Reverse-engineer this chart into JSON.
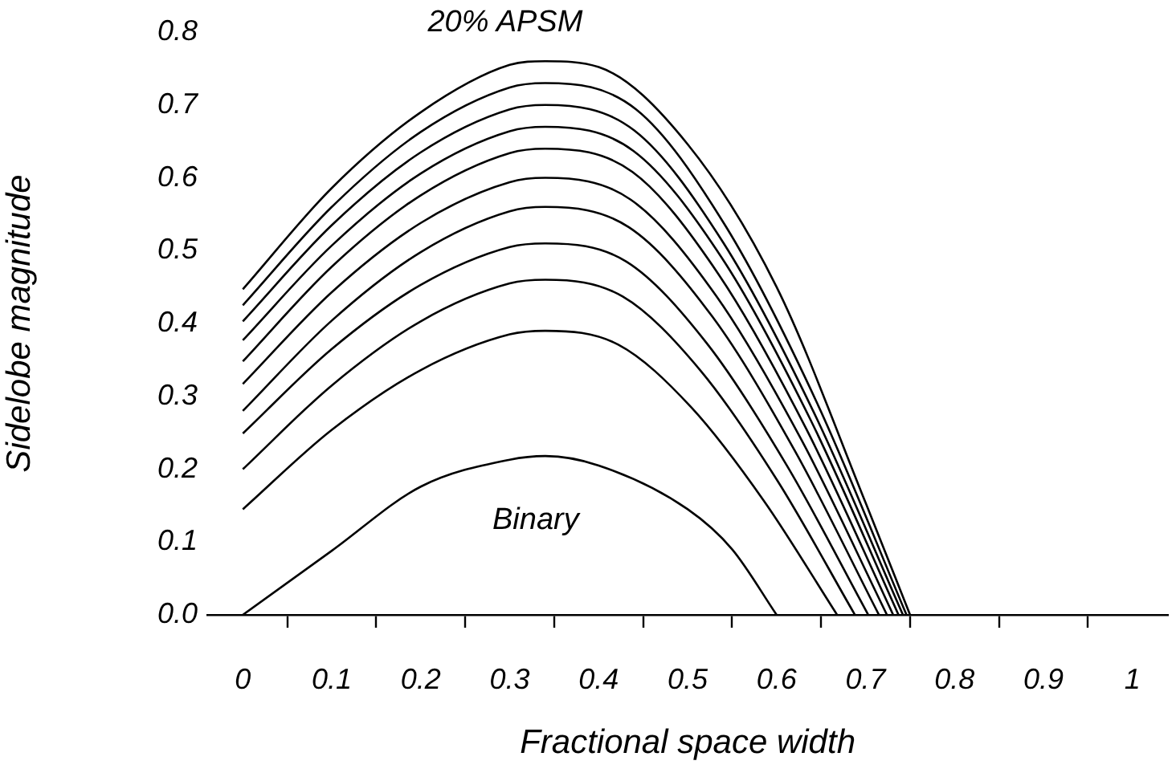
{
  "chart_data": {
    "type": "line",
    "xlabel": "Fractional space width",
    "ylabel": "Sidelobe magnitude",
    "xlim": [
      -0.04,
      1.04
    ],
    "ylim": [
      0,
      0.8
    ],
    "xticks": [
      0,
      {
        "value": 0.05,
        "label": null
      },
      0.1,
      {
        "value": 0.15,
        "label": null
      },
      0.2,
      {
        "value": 0.25,
        "label": null
      },
      0.3,
      {
        "value": 0.35,
        "label": null
      },
      0.4,
      {
        "value": 0.45,
        "label": null
      },
      0.5,
      {
        "value": 0.55,
        "label": null
      },
      0.6,
      {
        "value": 0.65,
        "label": null
      },
      0.7,
      {
        "value": 0.75,
        "label": null
      },
      0.8,
      {
        "value": 0.85,
        "label": null
      },
      0.9,
      {
        "value": 0.95,
        "label": null
      },
      1
    ],
    "yticks": [
      {
        "value": 0,
        "label": "0.0"
      },
      0.1,
      0.2,
      0.3,
      0.4,
      0.5,
      0.6,
      0.7,
      0.8
    ],
    "legend": false,
    "series": [
      {
        "color": "#000000",
        "x": [
          0,
          0.1,
          0.2,
          0.3,
          0.34,
          0.4,
          0.5,
          0.55,
          0.6
        ],
        "values": [
          0,
          0.088,
          0.176,
          0.213,
          0.218,
          0.205,
          0.145,
          0.09,
          0
        ]
      },
      {
        "color": "#000000",
        "x": [
          0,
          0.1,
          0.2,
          0.3,
          0.34,
          0.422,
          0.504,
          0.586,
          0.668
        ],
        "values": [
          0.145,
          0.254,
          0.336,
          0.385,
          0.39,
          0.371,
          0.285,
          0.156,
          0
        ]
      },
      {
        "color": "#000000",
        "x": [
          0,
          0.1,
          0.2,
          0.3,
          0.34,
          0.427,
          0.514,
          0.601,
          0.688
        ],
        "values": [
          0.2,
          0.315,
          0.403,
          0.455,
          0.46,
          0.437,
          0.336,
          0.184,
          0
        ]
      },
      {
        "color": "#000000",
        "x": [
          0,
          0.1,
          0.2,
          0.3,
          0.34,
          0.431,
          0.522,
          0.612,
          0.703
        ],
        "values": [
          0.249,
          0.365,
          0.453,
          0.505,
          0.51,
          0.485,
          0.372,
          0.204,
          0
        ]
      },
      {
        "color": "#000000",
        "x": [
          0,
          0.1,
          0.2,
          0.3,
          0.34,
          0.434,
          0.528,
          0.621,
          0.715
        ],
        "values": [
          0.28,
          0.404,
          0.498,
          0.554,
          0.56,
          0.532,
          0.409,
          0.224,
          0
        ]
      },
      {
        "color": "#000000",
        "x": [
          0,
          0.1,
          0.2,
          0.3,
          0.34,
          0.436,
          0.532,
          0.628,
          0.724
        ],
        "values": [
          0.317,
          0.443,
          0.538,
          0.594,
          0.6,
          0.57,
          0.438,
          0.24,
          0
        ]
      },
      {
        "color": "#000000",
        "x": [
          0,
          0.1,
          0.2,
          0.3,
          0.34,
          0.438,
          0.535,
          0.633,
          0.731
        ],
        "values": [
          0.348,
          0.478,
          0.576,
          0.634,
          0.64,
          0.608,
          0.467,
          0.256,
          0
        ]
      },
      {
        "color": "#000000",
        "x": [
          0,
          0.1,
          0.2,
          0.3,
          0.34,
          0.439,
          0.539,
          0.638,
          0.737
        ],
        "values": [
          0.377,
          0.507,
          0.606,
          0.664,
          0.67,
          0.637,
          0.489,
          0.268,
          0
        ]
      },
      {
        "color": "#000000",
        "x": [
          0,
          0.1,
          0.2,
          0.3,
          0.34,
          0.44,
          0.54,
          0.641,
          0.742
        ],
        "values": [
          0.403,
          0.535,
          0.635,
          0.694,
          0.7,
          0.665,
          0.511,
          0.28,
          0
        ]
      },
      {
        "color": "#000000",
        "x": [
          0,
          0.1,
          0.2,
          0.3,
          0.34,
          0.442,
          0.543,
          0.645,
          0.746
        ],
        "values": [
          0.425,
          0.56,
          0.663,
          0.724,
          0.73,
          0.694,
          0.533,
          0.292,
          0
        ]
      },
      {
        "color": "#000000",
        "x": [
          0,
          0.1,
          0.2,
          0.3,
          0.34,
          0.4,
          0.5,
          0.6,
          0.7,
          0.75
        ],
        "values": [
          0.447,
          0.586,
          0.69,
          0.755,
          0.76,
          0.752,
          0.646,
          0.45,
          0.154,
          0
        ]
      }
    ],
    "annotations": [
      "20% APSM",
      "Binary"
    ]
  }
}
